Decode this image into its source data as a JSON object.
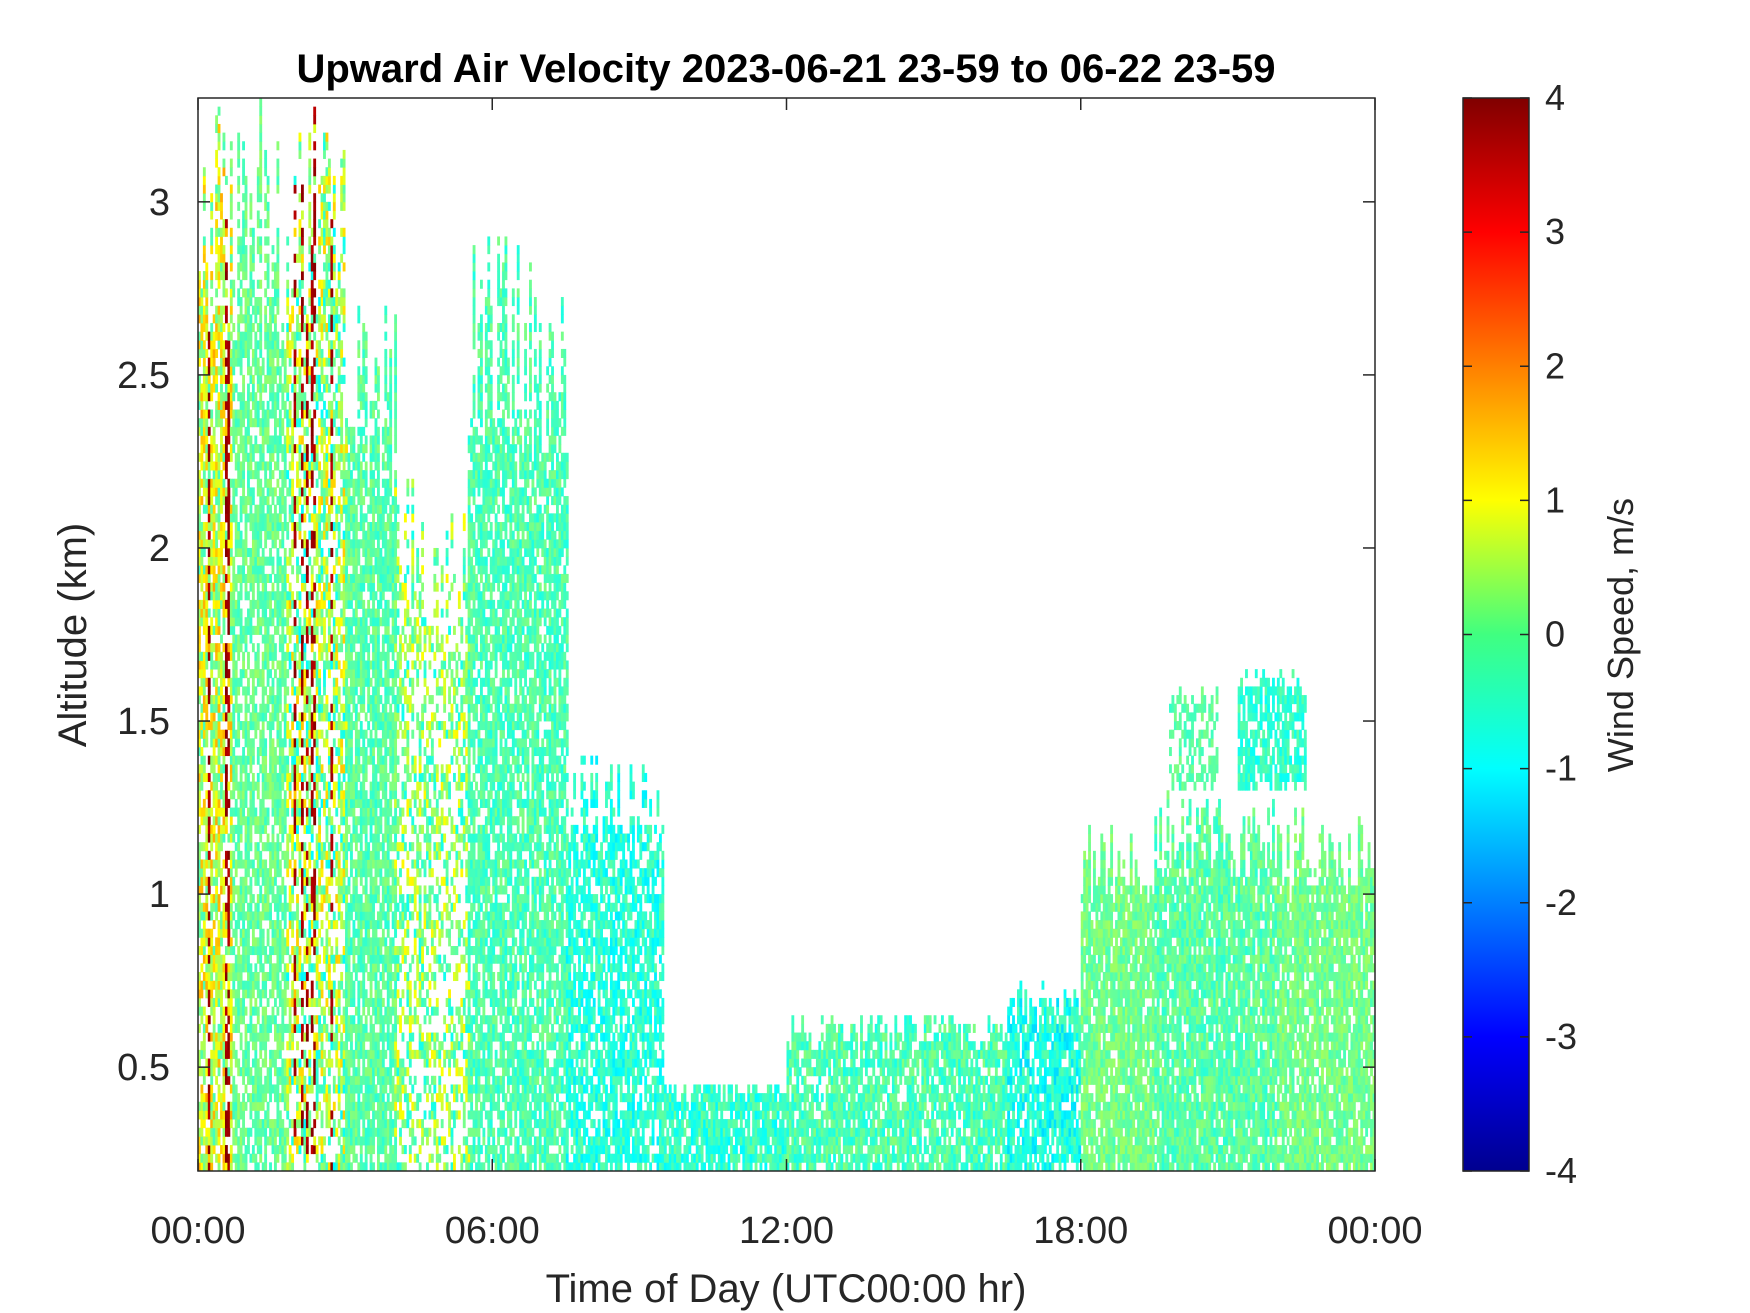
{
  "chart_data": {
    "type": "heatmap",
    "title": "Upward Air Velocity 2023-06-21 23-59 to 06-22 23-59",
    "xlabel": "Time of Day (UTC00:00 hr)",
    "ylabel": "Altitude (km)",
    "x_unit": "hours",
    "xlim": [
      0,
      24
    ],
    "ylim": [
      0.2,
      3.3
    ],
    "x_ticks": [
      0,
      6,
      12,
      18,
      24
    ],
    "x_tick_labels": [
      "00:00",
      "06:00",
      "12:00",
      "18:00",
      "00:00"
    ],
    "y_ticks": [
      0.5,
      1,
      1.5,
      2,
      2.5,
      3
    ],
    "y_tick_labels": [
      "0.5",
      "1",
      "1.5",
      "2",
      "2.5",
      "3"
    ],
    "colorbar": {
      "label": "Wind Speed, m/s",
      "colormap": "jet",
      "range": [
        -4,
        4
      ],
      "ticks": [
        -4,
        -3,
        -2,
        -1,
        0,
        1,
        2,
        3,
        4
      ],
      "tick_labels": [
        "-4",
        "-3",
        "-2",
        "-1",
        "0",
        "1",
        "2",
        "3",
        "4"
      ]
    },
    "grid": false,
    "regions": [
      {
        "x": [
          0.0,
          0.7
        ],
        "ytop": 3.3,
        "mean": 0.6,
        "spread": 2.2,
        "density": 0.75,
        "strong_up": 0.18
      },
      {
        "x": [
          0.7,
          1.8
        ],
        "ytop": 3.3,
        "mean": -0.2,
        "spread": 0.8,
        "density": 0.7,
        "strong_up": 0.0
      },
      {
        "x": [
          1.8,
          3.0
        ],
        "ytop": 3.3,
        "mean": 0.2,
        "spread": 2.5,
        "density": 0.6,
        "strong_up": 0.25
      },
      {
        "x": [
          3.0,
          4.0
        ],
        "ytop": 2.7,
        "mean": -0.3,
        "spread": 0.8,
        "density": 0.8,
        "strong_up": 0.0
      },
      {
        "x": [
          4.0,
          5.5
        ],
        "ytop": 2.2,
        "mean": 0.1,
        "spread": 2.0,
        "density": 0.45,
        "strong_up": 0.15
      },
      {
        "x": [
          5.5,
          7.5
        ],
        "ytop": 2.9,
        "mean": -0.4,
        "spread": 0.8,
        "density": 0.75,
        "strong_up": 0.0
      },
      {
        "x": [
          7.5,
          9.5
        ],
        "ytop": 1.4,
        "mean": -0.7,
        "spread": 0.9,
        "density": 0.7,
        "strong_up": 0.0
      },
      {
        "x": [
          9.5,
          12.0
        ],
        "ytop": 0.45,
        "mean": -0.6,
        "spread": 0.9,
        "density": 0.85,
        "strong_up": 0.0
      },
      {
        "x": [
          12.0,
          16.5
        ],
        "ytop": 0.65,
        "mean": -0.4,
        "spread": 0.9,
        "density": 0.8,
        "strong_up": 0.0
      },
      {
        "x": [
          16.5,
          18.0
        ],
        "ytop": 0.75,
        "mean": -0.8,
        "spread": 1.0,
        "density": 0.8,
        "strong_up": 0.0
      },
      {
        "x": [
          18.0,
          19.5
        ],
        "ytop": 1.2,
        "mean": -0.1,
        "spread": 0.7,
        "density": 0.85,
        "strong_up": 0.0
      },
      {
        "x": [
          19.5,
          22.0
        ],
        "ytop": 1.3,
        "mean": -0.3,
        "spread": 0.8,
        "density": 0.85,
        "strong_up": 0.0
      },
      {
        "x": [
          22.0,
          24.0
        ],
        "ytop": 1.25,
        "mean": -0.1,
        "spread": 0.7,
        "density": 0.85,
        "strong_up": 0.0
      },
      {
        "x": [
          21.2,
          22.6
        ],
        "ytop": 1.65,
        "ybot": 1.3,
        "mean": -0.6,
        "spread": 0.7,
        "density": 0.7,
        "strong_up": 0.0
      },
      {
        "x": [
          19.8,
          20.8
        ],
        "ytop": 1.6,
        "ybot": 1.3,
        "mean": -0.3,
        "spread": 0.6,
        "density": 0.5,
        "strong_up": 0.0
      }
    ]
  }
}
